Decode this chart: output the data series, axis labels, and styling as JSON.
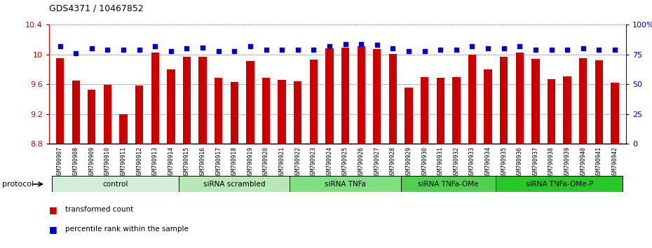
{
  "title": "GDS4371 / 10467852",
  "samples": [
    "GSM790907",
    "GSM790908",
    "GSM790909",
    "GSM790910",
    "GSM790911",
    "GSM790912",
    "GSM790913",
    "GSM790914",
    "GSM790915",
    "GSM790916",
    "GSM790917",
    "GSM790918",
    "GSM790919",
    "GSM790920",
    "GSM790921",
    "GSM790922",
    "GSM790923",
    "GSM790924",
    "GSM790925",
    "GSM790926",
    "GSM790927",
    "GSM790928",
    "GSM790929",
    "GSM790930",
    "GSM790931",
    "GSM790932",
    "GSM790933",
    "GSM790934",
    "GSM790935",
    "GSM790936",
    "GSM790937",
    "GSM790938",
    "GSM790939",
    "GSM790940",
    "GSM790941",
    "GSM790942"
  ],
  "red_values": [
    9.95,
    9.65,
    9.53,
    9.59,
    9.2,
    9.58,
    10.03,
    9.8,
    9.97,
    9.97,
    9.69,
    9.63,
    9.91,
    9.69,
    9.66,
    9.64,
    9.93,
    10.08,
    10.09,
    10.11,
    10.07,
    10.01,
    9.56,
    9.7,
    9.69,
    9.7,
    10.0,
    9.8,
    9.97,
    10.03,
    9.94,
    9.67,
    9.71,
    9.95,
    9.92,
    9.62
  ],
  "blue_values": [
    82,
    76,
    80,
    79,
    79,
    79,
    82,
    78,
    80,
    81,
    78,
    78,
    82,
    79,
    79,
    79,
    79,
    82,
    84,
    84,
    83,
    80,
    78,
    78,
    79,
    79,
    82,
    80,
    80,
    82,
    79,
    79,
    79,
    80,
    79,
    79
  ],
  "ylim_left": [
    8.8,
    10.4
  ],
  "ylim_right": [
    0,
    100
  ],
  "yticks_left": [
    8.8,
    9.2,
    9.6,
    10.0,
    10.4
  ],
  "yticks_right": [
    0,
    25,
    50,
    75,
    100
  ],
  "ytick_labels_left": [
    "8.8",
    "9.2",
    "9.6",
    "10",
    "10.4"
  ],
  "ytick_labels_right": [
    "0",
    "25",
    "50",
    "75",
    "100%"
  ],
  "bar_color": "#CC0000",
  "dot_color": "#0000CC",
  "groups": [
    {
      "label": "control",
      "start": 0,
      "end": 7,
      "color": "#d4edda"
    },
    {
      "label": "siRNA scrambled",
      "start": 8,
      "end": 14,
      "color": "#b8e8b8"
    },
    {
      "label": "siRNA TNFa",
      "start": 15,
      "end": 21,
      "color": "#80e080"
    },
    {
      "label": "siRNA TNFa-OMe",
      "start": 22,
      "end": 27,
      "color": "#50d050"
    },
    {
      "label": "siRNA TNFa-OMe-P",
      "start": 28,
      "end": 35,
      "color": "#28c828"
    }
  ],
  "protocol_label": "protocol",
  "legend_red": "transformed count",
  "legend_blue": "percentile rank within the sample",
  "bg_color": "#e8e8e8"
}
